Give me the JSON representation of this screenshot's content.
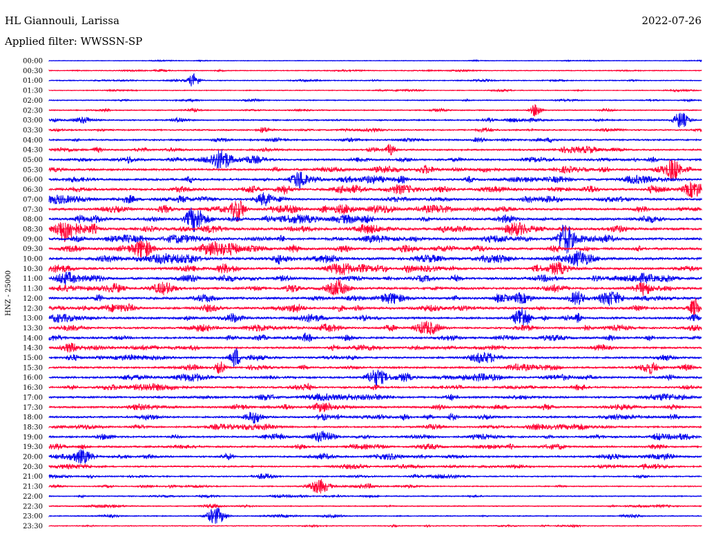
{
  "header": {
    "station": "HL Giannouli, Larissa",
    "date": "2022-07-26",
    "filter_label": "Applied filter: WWSSN-SP"
  },
  "colors": {
    "trace_a": "#0000ee",
    "trace_b": "#ff0033"
  },
  "chart_data": {
    "type": "line",
    "title": "HL Giannouli, Larissa",
    "ylabel": "HNZ - 25000",
    "row_labels": [
      "00:00",
      "00:30",
      "01:00",
      "01:30",
      "02:00",
      "02:30",
      "03:00",
      "03:30",
      "04:00",
      "04:30",
      "05:00",
      "05:30",
      "06:00",
      "06:30",
      "07:00",
      "07:30",
      "08:00",
      "08:30",
      "09:00",
      "09:30",
      "10:00",
      "10:30",
      "11:00",
      "11:30",
      "12:00",
      "12:30",
      "13:00",
      "13:30",
      "14:00",
      "14:30",
      "15:00",
      "15:30",
      "16:00",
      "16:30",
      "17:00",
      "17:30",
      "18:00",
      "18:30",
      "19:00",
      "19:30",
      "20:00",
      "20:30",
      "21:00",
      "21:30",
      "22:00",
      "22:30",
      "23:00",
      "23:30"
    ],
    "relative_activity": [
      0.15,
      0.25,
      0.3,
      0.25,
      0.3,
      0.35,
      0.5,
      0.5,
      0.6,
      0.6,
      0.7,
      0.8,
      0.85,
      0.9,
      0.85,
      0.9,
      0.95,
      1.0,
      0.95,
      0.95,
      1.0,
      0.9,
      0.95,
      0.95,
      1.0,
      0.9,
      0.85,
      0.75,
      0.8,
      0.75,
      0.75,
      0.7,
      0.8,
      0.7,
      0.75,
      0.7,
      0.7,
      0.65,
      0.7,
      0.65,
      0.65,
      0.55,
      0.45,
      0.4,
      0.35,
      0.35,
      0.35,
      0.3
    ],
    "grid": false,
    "legend": "none"
  }
}
